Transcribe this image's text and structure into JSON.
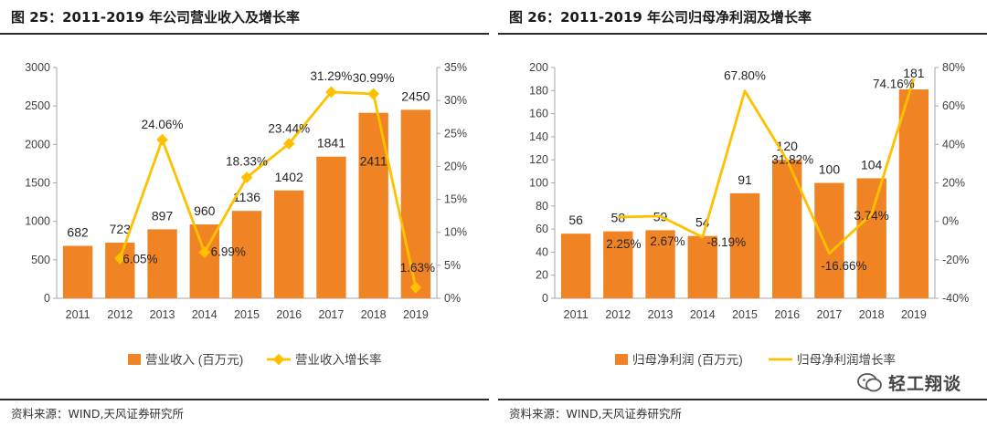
{
  "left": {
    "title": "图 25：2011-2019 年公司营业收入及增长率",
    "source": "资料来源：WIND,天风证券研究所",
    "legend": {
      "bar": "营业收入 (百万元)",
      "line": "营业收入增长率"
    },
    "left_ticks": [
      "0",
      "500",
      "1000",
      "1500",
      "2000",
      "2500",
      "3000"
    ],
    "right_ticks": [
      "0%",
      "5%",
      "10%",
      "15%",
      "20%",
      "25%",
      "30%",
      "35%"
    ],
    "bar_labels": [
      "682",
      "723",
      "897",
      "960",
      "1136",
      "1402",
      "1841",
      "2411",
      "2450"
    ],
    "line_labels": [
      "",
      "6.05%",
      "24.06%",
      "6.99%",
      "18.33%",
      "23.44%",
      "31.29%",
      "30.99%",
      "1.63%"
    ]
  },
  "right": {
    "title": "图 26：2011-2019 年公司归母净利润及增长率",
    "source": "资料来源：WIND,天风证券研究所",
    "legend": {
      "bar": "归母净利润 (百万元)",
      "line": "归母净利润增长率"
    },
    "left_ticks": [
      "0",
      "20",
      "40",
      "60",
      "80",
      "100",
      "120",
      "140",
      "160",
      "180",
      "200"
    ],
    "right_ticks": [
      "-40%",
      "-20%",
      "0%",
      "20%",
      "40%",
      "60%",
      "80%"
    ],
    "bar_labels": [
      "56",
      "58",
      "59",
      "54",
      "91",
      "120",
      "100",
      "104",
      "181"
    ],
    "line_labels": [
      "",
      "2.25%",
      "2.67%",
      "-8.19%",
      "67.80%",
      "31.82%",
      "-16.66%",
      "3.74%",
      "74.16%"
    ]
  },
  "watermark": "轻工翔谈",
  "colors": {
    "bar": "#f08424",
    "line": "#ffc000",
    "axis": "#a6a6a6",
    "text": "#404040"
  },
  "chart_data": [
    {
      "type": "bar",
      "title": "2011-2019 年公司营业收入及增长率",
      "categories": [
        "2011",
        "2012",
        "2013",
        "2014",
        "2015",
        "2016",
        "2017",
        "2018",
        "2019"
      ],
      "series": [
        {
          "name": "营业收入 (百万元)",
          "type": "bar",
          "axis": "left",
          "values": [
            682,
            723,
            897,
            960,
            1136,
            1402,
            1841,
            2411,
            2450
          ]
        },
        {
          "name": "营业收入增长率",
          "type": "line",
          "axis": "right",
          "unit": "%",
          "values": [
            null,
            6.05,
            24.06,
            6.99,
            18.33,
            23.44,
            31.29,
            30.99,
            1.63
          ]
        }
      ],
      "ylim": [
        0,
        3000
      ],
      "y2lim": [
        0,
        35
      ],
      "legend_position": "bottom"
    },
    {
      "type": "bar",
      "title": "2011-2019 年公司归母净利润及增长率",
      "categories": [
        "2011",
        "2012",
        "2013",
        "2014",
        "2015",
        "2016",
        "2017",
        "2018",
        "2019"
      ],
      "series": [
        {
          "name": "归母净利润 (百万元)",
          "type": "bar",
          "axis": "left",
          "values": [
            56,
            58,
            59,
            54,
            91,
            120,
            100,
            104,
            181
          ]
        },
        {
          "name": "归母净利润增长率",
          "type": "line",
          "axis": "right",
          "unit": "%",
          "values": [
            null,
            2.25,
            2.67,
            -8.19,
            67.8,
            31.82,
            -16.66,
            3.74,
            74.16
          ]
        }
      ],
      "ylim": [
        0,
        200
      ],
      "y2lim": [
        -40,
        80
      ],
      "legend_position": "bottom"
    }
  ]
}
